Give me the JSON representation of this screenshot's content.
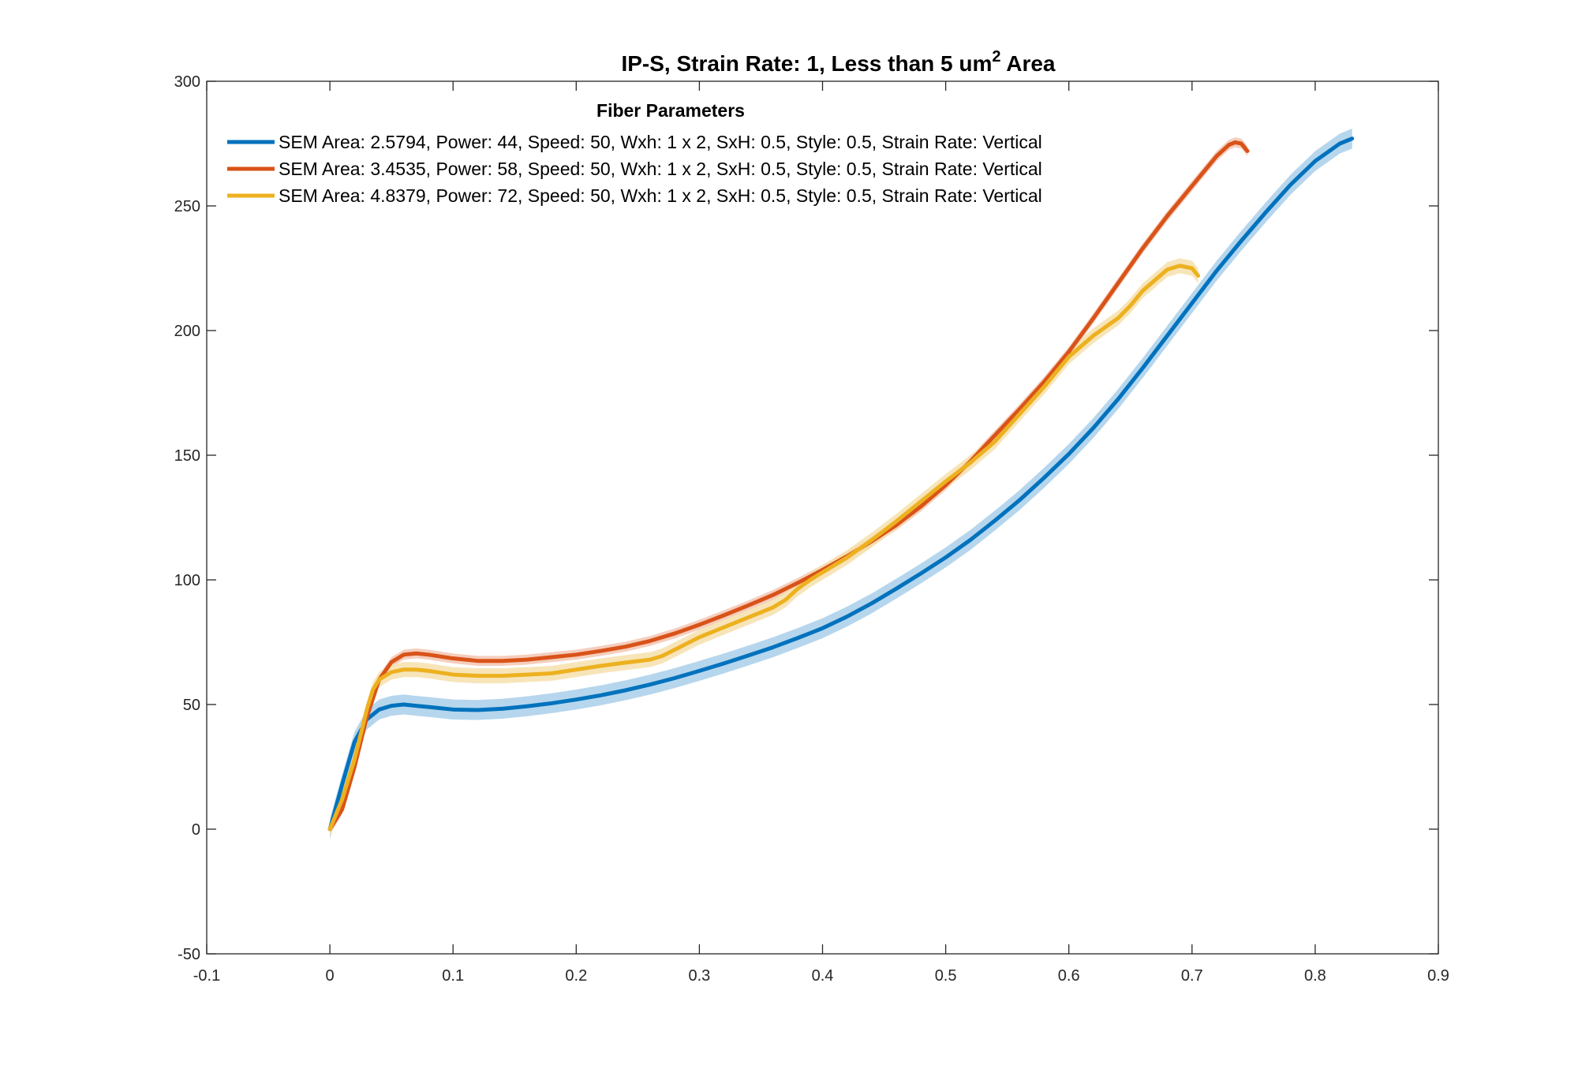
{
  "chart_data": {
    "type": "line",
    "title": "IP-S, Strain Rate: 1, Less than 5 um",
    "title_superscript": "2",
    "title_suffix": " Area",
    "xlabel": "",
    "ylabel": "",
    "xlim": [
      -0.1,
      0.9
    ],
    "ylim": [
      -50,
      300
    ],
    "xticks": [
      -0.1,
      0,
      0.1,
      0.2,
      0.3,
      0.4,
      0.5,
      0.6,
      0.7,
      0.8,
      0.9
    ],
    "xtick_labels": [
      "-0.1",
      "0",
      "0.1",
      "0.2",
      "0.3",
      "0.4",
      "0.5",
      "0.6",
      "0.7",
      "0.8",
      "0.9"
    ],
    "yticks": [
      -50,
      0,
      50,
      100,
      150,
      200,
      250,
      300
    ],
    "ytick_labels": [
      "-50",
      "0",
      "50",
      "100",
      "150",
      "200",
      "250",
      "300"
    ],
    "grid": false,
    "legend": {
      "title": "Fiber Parameters",
      "position": "top-left"
    },
    "series": [
      {
        "name": "SEM Area: 2.5794, Power: 44, Speed: 50, Wxh: 1 x 2, SxH: 0.5, Style: 0.5, Strain Rate: Vertical",
        "color": "#0072BD",
        "band_color": "#a9cfea",
        "band_width": 4,
        "x": [
          0,
          0.01,
          0.02,
          0.03,
          0.04,
          0.05,
          0.06,
          0.07,
          0.08,
          0.1,
          0.12,
          0.14,
          0.16,
          0.18,
          0.2,
          0.22,
          0.24,
          0.26,
          0.28,
          0.3,
          0.32,
          0.34,
          0.36,
          0.38,
          0.4,
          0.42,
          0.44,
          0.46,
          0.48,
          0.5,
          0.52,
          0.54,
          0.56,
          0.58,
          0.6,
          0.62,
          0.64,
          0.66,
          0.68,
          0.7,
          0.72,
          0.74,
          0.76,
          0.78,
          0.8,
          0.82,
          0.83
        ],
        "y": [
          0,
          18,
          35,
          44,
          48,
          49.5,
          50,
          49.5,
          49,
          48,
          47.8,
          48.3,
          49.3,
          50.5,
          52,
          53.7,
          55.7,
          58,
          60.6,
          63.5,
          66.5,
          69.7,
          73,
          76.7,
          80.6,
          85.3,
          90.6,
          96.5,
          102.6,
          109,
          116,
          123.8,
          132,
          141,
          150.5,
          161,
          172.5,
          185,
          198,
          211,
          224,
          236,
          247.5,
          258.5,
          268,
          275,
          277
        ]
      },
      {
        "name": "SEM Area: 3.4535, Power: 58, Speed: 50, Wxh: 1 x 2, SxH: 0.5, Style: 0.5, Strain Rate: Vertical",
        "color": "#D95319",
        "band_color": "#f3c6b1",
        "band_width": 2,
        "x": [
          0,
          0.01,
          0.02,
          0.03,
          0.04,
          0.05,
          0.06,
          0.07,
          0.08,
          0.1,
          0.12,
          0.14,
          0.16,
          0.18,
          0.2,
          0.22,
          0.24,
          0.26,
          0.28,
          0.3,
          0.32,
          0.34,
          0.36,
          0.38,
          0.4,
          0.42,
          0.44,
          0.46,
          0.48,
          0.5,
          0.52,
          0.54,
          0.56,
          0.58,
          0.6,
          0.62,
          0.64,
          0.66,
          0.68,
          0.7,
          0.72,
          0.73,
          0.735,
          0.74,
          0.745
        ],
        "y": [
          0,
          8,
          25,
          45,
          60,
          67,
          70,
          70.5,
          70,
          68.5,
          67.5,
          67.5,
          68,
          69,
          70,
          71.5,
          73.2,
          75.5,
          78.5,
          82,
          85.8,
          89.8,
          94,
          98.8,
          104,
          109.5,
          115.5,
          122,
          129.5,
          138,
          147.5,
          158,
          168.5,
          179.5,
          191.5,
          205,
          219,
          233,
          246,
          258,
          270,
          274.5,
          275.5,
          275,
          272
        ]
      },
      {
        "name": "SEM Area: 4.8379, Power: 72, Speed: 50, Wxh: 1 x 2, SxH: 0.5, Style: 0.5, Strain Rate: Vertical",
        "color": "#EDB120",
        "band_color": "#f6e0ad",
        "band_width": 3,
        "x": [
          0,
          0.01,
          0.02,
          0.03,
          0.035,
          0.04,
          0.05,
          0.06,
          0.07,
          0.08,
          0.1,
          0.12,
          0.14,
          0.16,
          0.18,
          0.2,
          0.22,
          0.24,
          0.26,
          0.27,
          0.28,
          0.3,
          0.32,
          0.34,
          0.36,
          0.37,
          0.38,
          0.39,
          0.4,
          0.42,
          0.44,
          0.46,
          0.48,
          0.5,
          0.52,
          0.54,
          0.56,
          0.58,
          0.6,
          0.62,
          0.64,
          0.65,
          0.66,
          0.68,
          0.69,
          0.7,
          0.705
        ],
        "y": [
          0,
          12,
          28,
          48,
          56,
          60,
          63,
          64,
          64,
          63.5,
          62,
          61.5,
          61.5,
          62,
          62.5,
          64,
          65.5,
          66.8,
          68,
          69.5,
          72,
          77,
          81,
          85,
          89,
          92,
          96.5,
          100,
          103,
          109,
          116,
          123.5,
          131.5,
          139.5,
          147,
          155.5,
          166.5,
          177.5,
          189.5,
          198,
          205,
          210,
          216,
          224.5,
          226,
          225,
          222
        ]
      }
    ]
  }
}
